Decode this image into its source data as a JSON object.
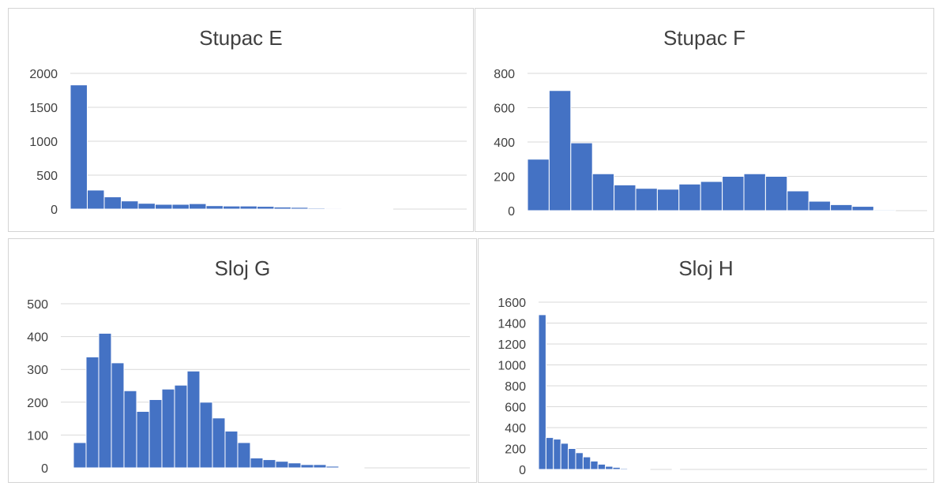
{
  "chart_data": [
    {
      "type": "bar",
      "title": "Stupac E",
      "ylim": [
        0,
        2000
      ],
      "yticks": [
        0,
        500,
        1000,
        1500,
        2000
      ],
      "grid": true,
      "bar_color": "#4472c4",
      "values": [
        1830,
        280,
        180,
        120,
        85,
        70,
        70,
        80,
        50,
        45,
        45,
        40,
        30,
        25,
        15,
        12,
        10,
        10,
        8
      ]
    },
    {
      "type": "bar",
      "title": "Stupac F",
      "ylim": [
        0,
        800
      ],
      "yticks": [
        0,
        200,
        400,
        600,
        800
      ],
      "grid": true,
      "bar_color": "#4472c4",
      "values": [
        300,
        700,
        395,
        215,
        150,
        130,
        125,
        155,
        170,
        200,
        215,
        200,
        115,
        55,
        35,
        25,
        5
      ]
    },
    {
      "type": "bar",
      "title": "Sloj G",
      "ylim": [
        0,
        500
      ],
      "yticks": [
        0,
        100,
        200,
        300,
        400,
        500
      ],
      "grid": true,
      "bar_color": "#4472c4",
      "values": [
        2,
        77,
        338,
        410,
        320,
        235,
        172,
        208,
        240,
        252,
        295,
        200,
        152,
        112,
        77,
        30,
        25,
        20,
        15,
        10,
        10,
        5,
        2,
        2
      ]
    },
    {
      "type": "bar",
      "title": "Sloj H",
      "ylim": [
        0,
        1600
      ],
      "yticks": [
        0,
        200,
        400,
        600,
        800,
        1000,
        1200,
        1400,
        1600
      ],
      "grid": true,
      "bar_color": "#4472c4",
      "values": [
        1480,
        305,
        290,
        250,
        200,
        160,
        120,
        80,
        50,
        30,
        20,
        10,
        5,
        5,
        5,
        0,
        0,
        0,
        5
      ]
    }
  ]
}
